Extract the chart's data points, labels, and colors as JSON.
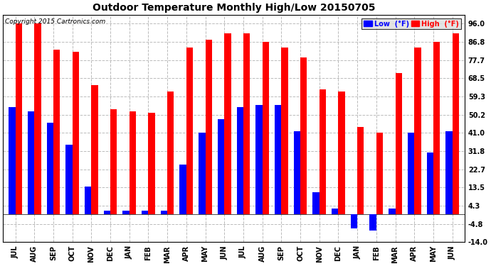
{
  "title": "Outdoor Temperature Monthly High/Low 20150705",
  "copyright": "Copyright 2015 Cartronics.com",
  "months": [
    "JUL",
    "AUG",
    "SEP",
    "OCT",
    "NOV",
    "DEC",
    "JAN",
    "FEB",
    "MAR",
    "APR",
    "MAY",
    "JUN",
    "JUL",
    "AUG",
    "SEP",
    "OCT",
    "NOV",
    "DEC",
    "JAN",
    "FEB",
    "MAR",
    "APR",
    "MAY",
    "JUN"
  ],
  "high": [
    96.0,
    96.0,
    83.0,
    82.0,
    65.0,
    53.0,
    52.0,
    51.0,
    62.0,
    84.0,
    88.0,
    91.0,
    91.0,
    87.0,
    84.0,
    79.0,
    63.0,
    62.0,
    44.0,
    41.0,
    71.0,
    84.0,
    86.8,
    91.0
  ],
  "low": [
    54.0,
    52.0,
    46.0,
    35.0,
    14.0,
    2.0,
    2.0,
    2.0,
    2.0,
    25.0,
    41.0,
    48.0,
    54.0,
    55.0,
    55.0,
    42.0,
    11.0,
    3.0,
    -7.0,
    -8.0,
    3.0,
    41.0,
    31.0,
    42.0
  ],
  "yticks": [
    96.0,
    86.8,
    77.7,
    68.5,
    59.3,
    50.2,
    41.0,
    31.8,
    22.7,
    13.5,
    4.3,
    -4.8,
    -14.0
  ],
  "ylim": [
    -14.0,
    100.5
  ],
  "bar_width": 0.35,
  "low_color": "#0000ff",
  "high_color": "#ff0000",
  "bg_color": "#ffffff",
  "grid_color": "#bbbbbb",
  "title_fontsize": 10,
  "copyright_fontsize": 6.5,
  "tick_fontsize": 7,
  "legend_fontsize": 7
}
